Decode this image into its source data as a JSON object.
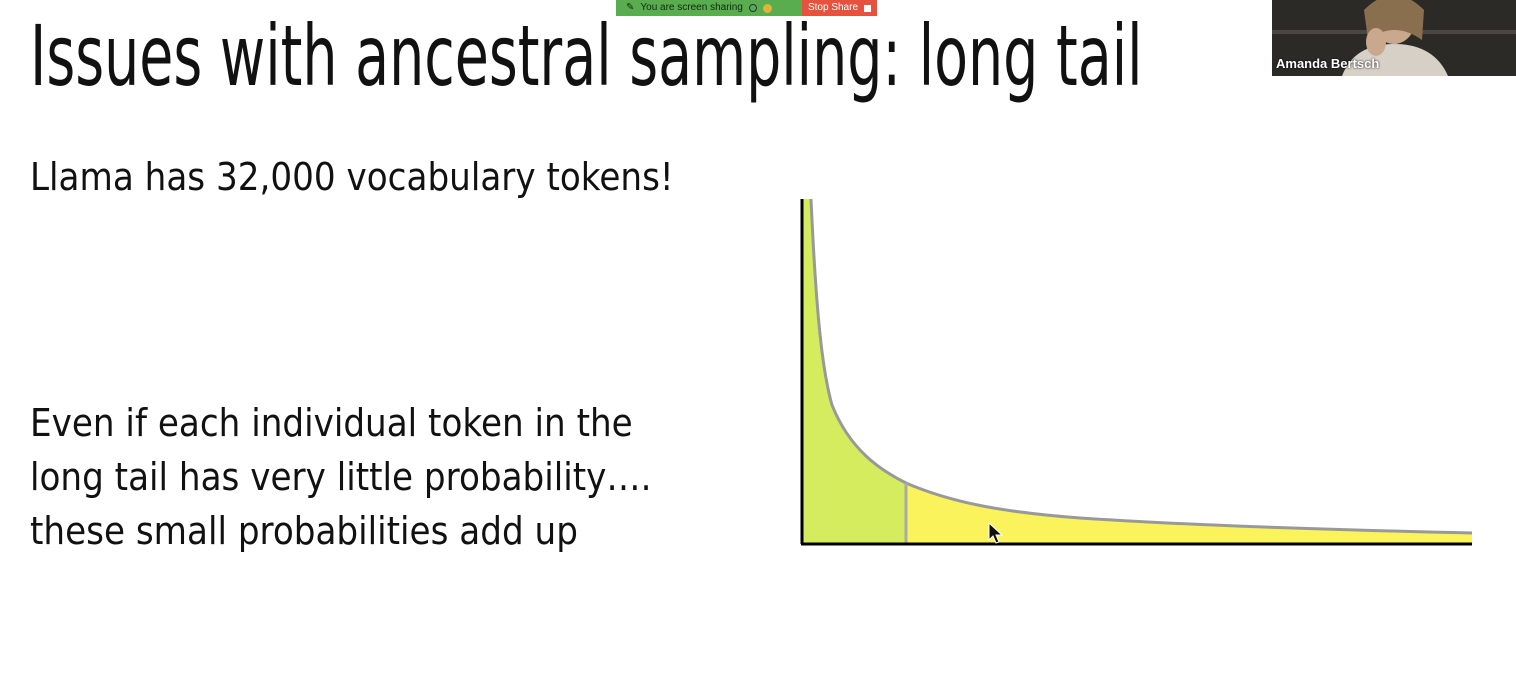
{
  "screen_share": {
    "status_text": "You are screen sharing",
    "stop_label": "Stop Share",
    "accent_color": "#5aad4f",
    "stop_color": "#e5533f"
  },
  "slide": {
    "title": "Issues with ancestral sampling: long tail",
    "line_vocab": "Llama has 32,000 vocabulary tokens!",
    "paragraph": [
      "Even if each individual token in the",
      "long tail has very little probability….",
      "these small probabilities add up"
    ]
  },
  "video": {
    "participant_name": "Amanda Bertsch"
  },
  "diagram": {
    "head_color": "#d4ec5e",
    "tail_color": "#fbf35b"
  },
  "icons": {
    "share_icon": "pen-icon",
    "cursor": "mouse-pointer-icon"
  }
}
